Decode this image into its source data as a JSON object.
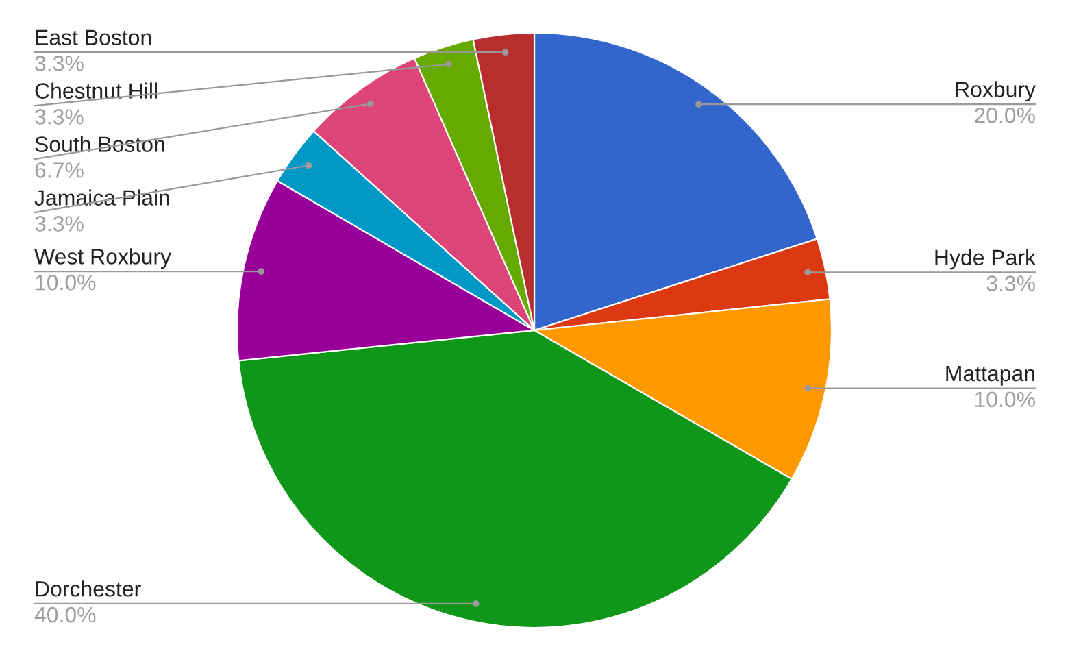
{
  "chart_data": {
    "type": "pie",
    "categories": [
      "Roxbury",
      "Hyde Park",
      "Mattapan",
      "Dorchester",
      "West Roxbury",
      "Jamaica Plain",
      "South Boston",
      "Chestnut Hill",
      "East Boston"
    ],
    "values": [
      20.0,
      3.3,
      10.0,
      40.0,
      10.0,
      3.3,
      6.7,
      3.3,
      3.3
    ],
    "colors": [
      "#3366cc",
      "#dc3912",
      "#ff9900",
      "#109618",
      "#990099",
      "#0099c6",
      "#dd4477",
      "#66aa00",
      "#b82e2e"
    ],
    "value_labels": [
      "20.0%",
      "3.3%",
      "10.0%",
      "40.0%",
      "10.0%",
      "3.3%",
      "6.7%",
      "3.3%",
      "3.3%"
    ]
  }
}
